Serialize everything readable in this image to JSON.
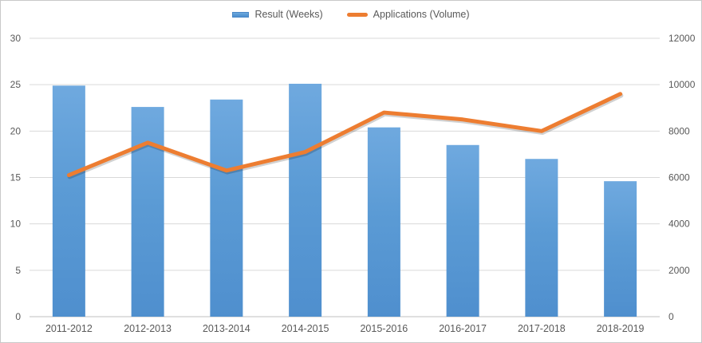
{
  "legend": {
    "items": [
      {
        "label": "Result (Weeks)",
        "swatch": "bar",
        "color": "#5B9BD5"
      },
      {
        "label": "Applications (Volume)",
        "swatch": "line",
        "color": "#ED7D31"
      }
    ],
    "position": "top-center"
  },
  "chart_data": {
    "type": "combo-bar-line",
    "categories": [
      "2011-2012",
      "2012-2013",
      "2013-2014",
      "2014-2015",
      "2015-2016",
      "2016-2017",
      "2017-2018",
      "2018-2019"
    ],
    "series": [
      {
        "name": "Result (Weeks)",
        "type": "bar",
        "axis": "left",
        "color": "#5B9BD5",
        "values": [
          24.9,
          22.6,
          23.4,
          25.1,
          20.4,
          18.5,
          17.0,
          14.6
        ]
      },
      {
        "name": "Applications (Volume)",
        "type": "line",
        "axis": "right",
        "color": "#ED7D31",
        "values": [
          6100,
          7500,
          6300,
          7100,
          8800,
          8500,
          8000,
          9600
        ]
      }
    ],
    "left_axis": {
      "min": 0,
      "max": 30,
      "step": 5,
      "ticks": [
        "0",
        "5",
        "10",
        "15",
        "20",
        "25",
        "30"
      ]
    },
    "right_axis": {
      "min": 0,
      "max": 12000,
      "step": 2000,
      "ticks": [
        "0",
        "2000",
        "4000",
        "6000",
        "8000",
        "10000",
        "12000"
      ]
    },
    "grid": true,
    "legend_position": "top",
    "title": "",
    "xlabel": "",
    "ylabel": ""
  },
  "colors": {
    "bar_fill": "#5B9BD5",
    "bar_fill_light": "#6FA9DF",
    "bar_fill_dark": "#4F8FCE",
    "line_stroke": "#ED7D31",
    "gridline": "#D9D9D9",
    "axis_line": "#BFBFBF",
    "text": "#595959",
    "frame_border": "#C9C9C9",
    "background": "#FFFFFF"
  }
}
